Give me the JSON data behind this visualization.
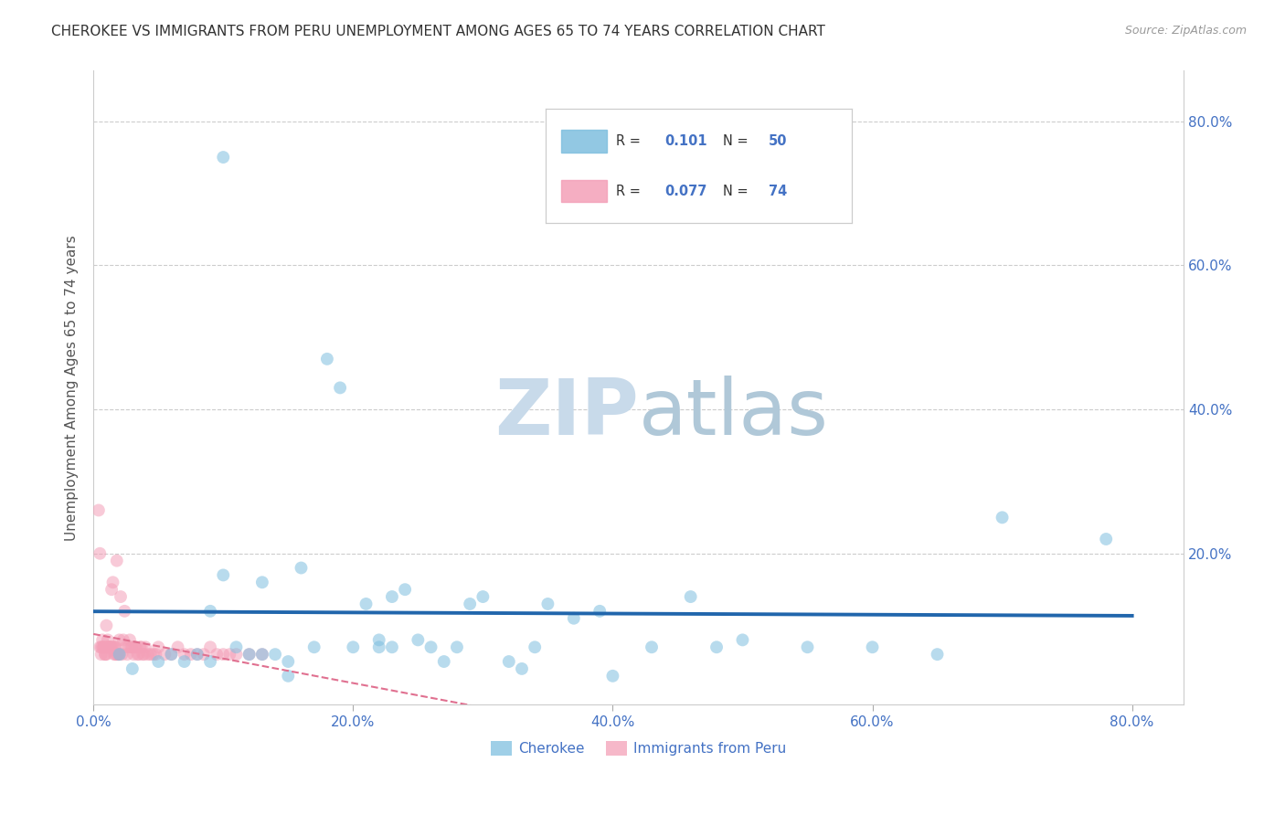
{
  "title": "CHEROKEE VS IMMIGRANTS FROM PERU UNEMPLOYMENT AMONG AGES 65 TO 74 YEARS CORRELATION CHART",
  "source": "Source: ZipAtlas.com",
  "ylabel": "Unemployment Among Ages 65 to 74 years",
  "xlim": [
    0.0,
    0.84
  ],
  "ylim": [
    -0.01,
    0.87
  ],
  "xticks": [
    0.0,
    0.2,
    0.4,
    0.6,
    0.8
  ],
  "yticks": [
    0.0,
    0.2,
    0.4,
    0.6,
    0.8
  ],
  "xtick_labels": [
    "0.0%",
    "20.0%",
    "40.0%",
    "60.0%",
    "80.0%"
  ],
  "ytick_labels": [
    "",
    "20.0%",
    "40.0%",
    "60.0%",
    "80.0%"
  ],
  "legend_label1": "Cherokee",
  "legend_label2": "Immigrants from Peru",
  "color_blue": "#7fbfdf",
  "color_pink": "#f4a0b8",
  "color_blue_line": "#2166ac",
  "color_pink_line": "#e07090",
  "marker_size": 100,
  "marker_alpha": 0.55,
  "watermark": "ZIPatlas",
  "watermark_color": "#d0e4f0",
  "background_color": "#ffffff",
  "grid_color": "#cccccc",
  "title_color": "#333333",
  "axis_label_color": "#555555",
  "tick_label_color": "#4472c4",
  "source_color": "#999999",
  "cherokee_x": [
    0.1,
    0.02,
    0.03,
    0.05,
    0.06,
    0.07,
    0.08,
    0.09,
    0.09,
    0.1,
    0.11,
    0.12,
    0.13,
    0.14,
    0.15,
    0.16,
    0.17,
    0.18,
    0.19,
    0.2,
    0.21,
    0.22,
    0.23,
    0.24,
    0.25,
    0.26,
    0.27,
    0.28,
    0.29,
    0.3,
    0.32,
    0.34,
    0.35,
    0.37,
    0.39,
    0.4,
    0.43,
    0.46,
    0.48,
    0.5,
    0.55,
    0.6,
    0.65,
    0.7,
    0.78,
    0.13,
    0.15,
    0.22,
    0.23,
    0.33
  ],
  "cherokee_y": [
    0.75,
    0.06,
    0.04,
    0.05,
    0.06,
    0.05,
    0.06,
    0.12,
    0.05,
    0.17,
    0.07,
    0.06,
    0.16,
    0.06,
    0.05,
    0.18,
    0.07,
    0.47,
    0.43,
    0.07,
    0.13,
    0.07,
    0.14,
    0.15,
    0.08,
    0.07,
    0.05,
    0.07,
    0.13,
    0.14,
    0.05,
    0.07,
    0.13,
    0.11,
    0.12,
    0.03,
    0.07,
    0.14,
    0.07,
    0.08,
    0.07,
    0.07,
    0.06,
    0.25,
    0.22,
    0.06,
    0.03,
    0.08,
    0.07,
    0.04
  ],
  "peru_x": [
    0.005,
    0.006,
    0.007,
    0.008,
    0.009,
    0.01,
    0.01,
    0.011,
    0.011,
    0.012,
    0.013,
    0.014,
    0.015,
    0.016,
    0.017,
    0.018,
    0.019,
    0.02,
    0.021,
    0.022,
    0.023,
    0.024,
    0.025,
    0.026,
    0.027,
    0.028,
    0.029,
    0.03,
    0.031,
    0.032,
    0.033,
    0.034,
    0.035,
    0.036,
    0.037,
    0.038,
    0.039,
    0.04,
    0.042,
    0.044,
    0.046,
    0.048,
    0.05,
    0.055,
    0.06,
    0.065,
    0.07,
    0.075,
    0.08,
    0.085,
    0.09,
    0.095,
    0.1,
    0.105,
    0.11,
    0.12,
    0.13,
    0.004,
    0.005,
    0.006,
    0.007,
    0.008,
    0.009,
    0.01,
    0.012,
    0.013,
    0.014,
    0.015,
    0.016,
    0.017,
    0.018,
    0.019,
    0.02
  ],
  "peru_y": [
    0.07,
    0.07,
    0.08,
    0.07,
    0.06,
    0.07,
    0.1,
    0.08,
    0.07,
    0.07,
    0.07,
    0.15,
    0.16,
    0.07,
    0.07,
    0.19,
    0.06,
    0.08,
    0.14,
    0.06,
    0.08,
    0.12,
    0.07,
    0.06,
    0.07,
    0.08,
    0.07,
    0.07,
    0.06,
    0.07,
    0.07,
    0.06,
    0.06,
    0.07,
    0.07,
    0.06,
    0.06,
    0.07,
    0.06,
    0.06,
    0.06,
    0.06,
    0.07,
    0.06,
    0.06,
    0.07,
    0.06,
    0.06,
    0.06,
    0.06,
    0.07,
    0.06,
    0.06,
    0.06,
    0.06,
    0.06,
    0.06,
    0.26,
    0.2,
    0.06,
    0.07,
    0.07,
    0.06,
    0.06,
    0.07,
    0.07,
    0.07,
    0.07,
    0.06,
    0.06,
    0.06,
    0.06,
    0.06
  ]
}
